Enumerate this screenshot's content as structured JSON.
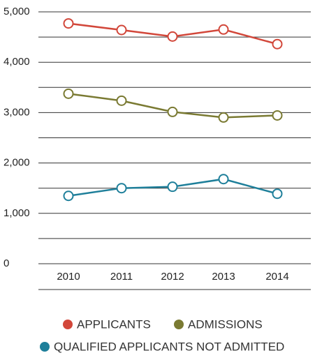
{
  "chart_data": {
    "type": "line",
    "categories": [
      "2010",
      "2011",
      "2012",
      "2013",
      "2014"
    ],
    "series": [
      {
        "name": "APPLICANTS",
        "color": "#d2473a",
        "values": [
          4770,
          4640,
          4510,
          4650,
          4360
        ]
      },
      {
        "name": "ADMISSIONS",
        "color": "#7a7a32",
        "values": [
          3375,
          3236,
          3014,
          2903,
          2944
        ]
      },
      {
        "name": "QUALIFIED APPLICANTS NOT ADMITTED",
        "color": "#1e7f9a",
        "values": [
          1347,
          1500,
          1528,
          1680,
          1389
        ]
      }
    ],
    "ylim": [
      0,
      5000
    ],
    "yticks": [
      0,
      {
        "value": 1000,
        "label": "1,000"
      },
      {
        "value": 2000,
        "label": "2,000"
      },
      {
        "value": 3000,
        "label": "3,000"
      },
      {
        "value": 4000,
        "label": "4,000"
      },
      {
        "value": 5000,
        "label": "5,000"
      }
    ],
    "minor_yticks": [
      500,
      1500,
      2500,
      3500,
      4500
    ],
    "grid": true
  }
}
